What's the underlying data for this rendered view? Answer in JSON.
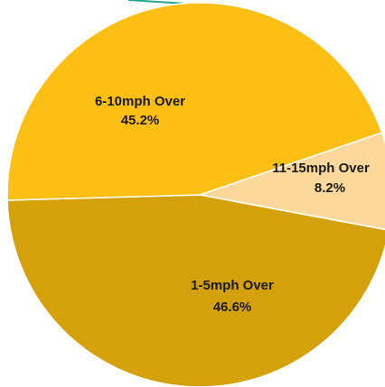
{
  "chart_data": {
    "type": "pie",
    "title": "",
    "legend": "none",
    "slices": [
      {
        "label": "11-15mph Over",
        "percent_label": "8.2%",
        "value": 8.2,
        "color": "#fcd99a"
      },
      {
        "label": "1-5mph Over",
        "percent_label": "46.6%",
        "value": 46.6,
        "color": "#d4a10a"
      },
      {
        "label": "6-10mph Over",
        "percent_label": "45.2%",
        "value": 45.2,
        "color": "#fdbf13"
      }
    ],
    "accent_line_color": "#23a98a"
  }
}
